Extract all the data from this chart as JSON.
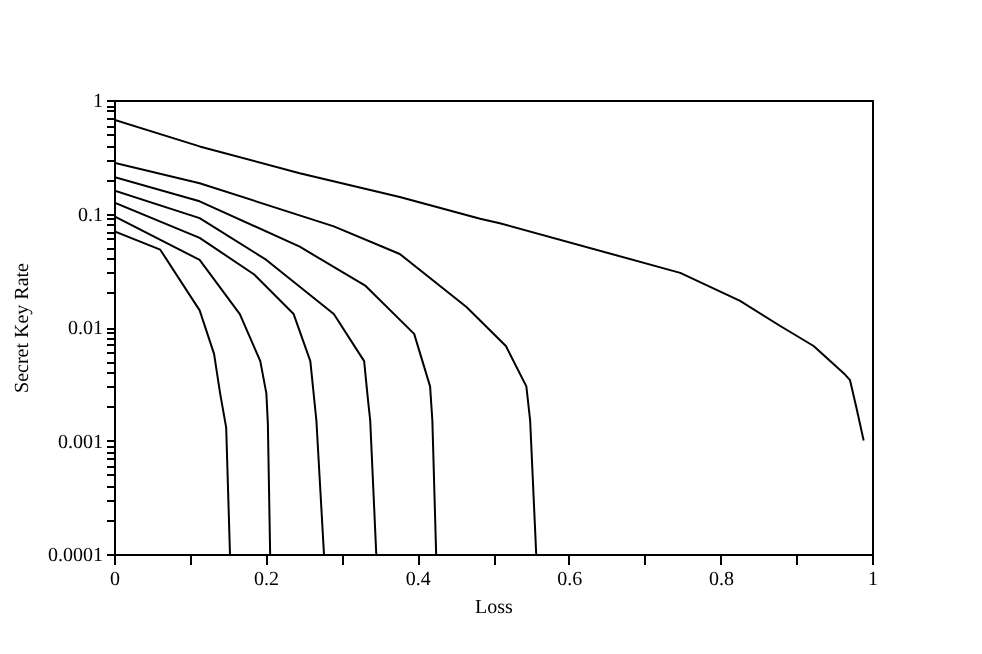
{
  "chart_data": {
    "type": "line",
    "xlabel": "Loss",
    "ylabel": "Secret Key Rate",
    "log": "y",
    "grid": false,
    "legend": false,
    "xlim": [
      0,
      1
    ],
    "ylim": [
      0.0001,
      1
    ],
    "xticks": [
      0,
      {
        "value": 0.1,
        "label": null
      },
      0.2,
      {
        "value": 0.3,
        "label": null
      },
      0.4,
      {
        "value": 0.5,
        "label": null
      },
      0.6,
      {
        "value": 0.7,
        "label": null
      },
      0.8,
      {
        "value": 0.9,
        "label": null
      },
      1
    ],
    "yticks": [
      0.0001,
      {
        "value": 0.0002,
        "label": null
      },
      {
        "value": 0.0003,
        "label": null
      },
      {
        "value": 0.0004,
        "label": null
      },
      {
        "value": 0.0005,
        "label": null
      },
      {
        "value": 0.0006,
        "label": null
      },
      {
        "value": 0.0007,
        "label": null
      },
      {
        "value": 0.0008,
        "label": null
      },
      {
        "value": 0.0009,
        "label": null
      },
      0.001,
      {
        "value": 0.002,
        "label": null
      },
      {
        "value": 0.003,
        "label": null
      },
      {
        "value": 0.004,
        "label": null
      },
      {
        "value": 0.005,
        "label": null
      },
      {
        "value": 0.006,
        "label": null
      },
      {
        "value": 0.007,
        "label": null
      },
      {
        "value": 0.008,
        "label": null
      },
      {
        "value": 0.009,
        "label": null
      },
      0.01,
      {
        "value": 0.02,
        "label": null
      },
      {
        "value": 0.03,
        "label": null
      },
      {
        "value": 0.04,
        "label": null
      },
      {
        "value": 0.05,
        "label": null
      },
      {
        "value": 0.06,
        "label": null
      },
      {
        "value": 0.07,
        "label": null
      },
      {
        "value": 0.08,
        "label": null
      },
      {
        "value": 0.09,
        "label": null
      },
      0.1,
      {
        "value": 0.2,
        "label": null
      },
      {
        "value": 0.3,
        "label": null
      },
      {
        "value": 0.4,
        "label": null
      },
      {
        "value": 0.5,
        "label": null
      },
      {
        "value": 0.6,
        "label": null
      },
      {
        "value": 0.7,
        "label": null
      },
      {
        "value": 0.8,
        "label": null
      },
      {
        "value": 0.9,
        "label": null
      },
      1
    ],
    "series": [
      {
        "color": "#000000",
        "x": [
          0,
          0.113,
          0.245,
          0.377,
          0.483,
          0.509,
          0.747,
          0.826,
          0.879,
          0.923,
          0.963,
          0.971,
          0.979,
          0.989
        ],
        "values": [
          0.67,
          0.39,
          0.226,
          0.14,
          0.09,
          0.082,
          0.03,
          0.017,
          0.0102,
          0.0068,
          0.0039,
          0.0034,
          0.002,
          0.001
        ]
      },
      {
        "color": "#000000",
        "x": [
          0,
          0.113,
          0.29,
          0.377,
          0.465,
          0.517,
          0.544,
          0.549,
          0.557
        ],
        "values": [
          0.28,
          0.185,
          0.077,
          0.044,
          0.015,
          0.0068,
          0.003,
          0.0015,
          0.0001
        ]
      },
      {
        "color": "#000000",
        "x": [
          0,
          0.113,
          0.245,
          0.332,
          0.396,
          0.417,
          0.42,
          0.425
        ],
        "values": [
          0.21,
          0.128,
          0.051,
          0.023,
          0.0087,
          0.003,
          0.0015,
          0.0001
        ]
      },
      {
        "color": "#000000",
        "x": [
          0,
          0.113,
          0.201,
          0.29,
          0.33,
          0.335,
          0.338,
          0.346
        ],
        "values": [
          0.16,
          0.091,
          0.039,
          0.013,
          0.005,
          0.0023,
          0.0015,
          0.0001
        ]
      },
      {
        "color": "#000000",
        "x": [
          0,
          0.113,
          0.185,
          0.237,
          0.259,
          0.267,
          0.277
        ],
        "values": [
          0.125,
          0.061,
          0.029,
          0.013,
          0.005,
          0.0015,
          0.0001
        ]
      },
      {
        "color": "#000000",
        "x": [
          0,
          0.113,
          0.166,
          0.193,
          0.201,
          0.203,
          0.206
        ],
        "values": [
          0.095,
          0.039,
          0.013,
          0.005,
          0.0026,
          0.0014,
          0.0001
        ]
      },
      {
        "color": "#000000",
        "x": [
          0,
          0.061,
          0.113,
          0.132,
          0.14,
          0.148,
          0.153
        ],
        "values": [
          0.07,
          0.048,
          0.014,
          0.0058,
          0.0026,
          0.0013,
          0.0001
        ]
      }
    ]
  }
}
